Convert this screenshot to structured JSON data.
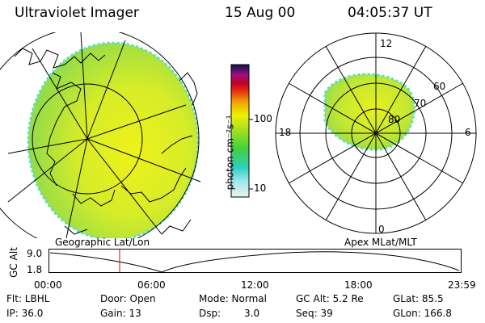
{
  "header": {
    "instrument": "Ultraviolet Imager",
    "date": "15 Aug 00",
    "time": "04:05:37 UT"
  },
  "colorbar": {
    "unit_label": "photon cm⁻²s⁻¹",
    "ticks": [
      "100",
      "10"
    ]
  },
  "polar_plot": {
    "hour_labels": {
      "top": "12",
      "left": "18",
      "right": "6",
      "bottom": "0"
    },
    "lat_labels": [
      "60",
      "70",
      "80"
    ]
  },
  "captions": {
    "left": "Geographic Lat/Lon",
    "right": "Apex MLat/MLT"
  },
  "altitude_plot": {
    "ylabel": "GC Alt",
    "y_ticks": [
      "9.0",
      "1.8"
    ],
    "x_ticks": [
      "00:00",
      "06:00",
      "12:00",
      "18:00",
      "23:59"
    ]
  },
  "info": {
    "filter": "Flt: LBHL",
    "ip": "IP: 36.0",
    "door": "Door: Open",
    "gain": "Gain: 13",
    "mode": "Mode: Normal",
    "dsp_label": "Dsp:",
    "dsp_value": "3.0",
    "gc_alt": "GC Alt: 5.2 Re",
    "seq": "Seq: 39",
    "glat": "GLat:  85.5",
    "glon": "GLon: 166.8"
  },
  "colors": {
    "image_green": "#a8e040",
    "image_yellow": "#e8f020",
    "edge_cyan": "#58e0c8",
    "marker_red": "#dd0000"
  }
}
